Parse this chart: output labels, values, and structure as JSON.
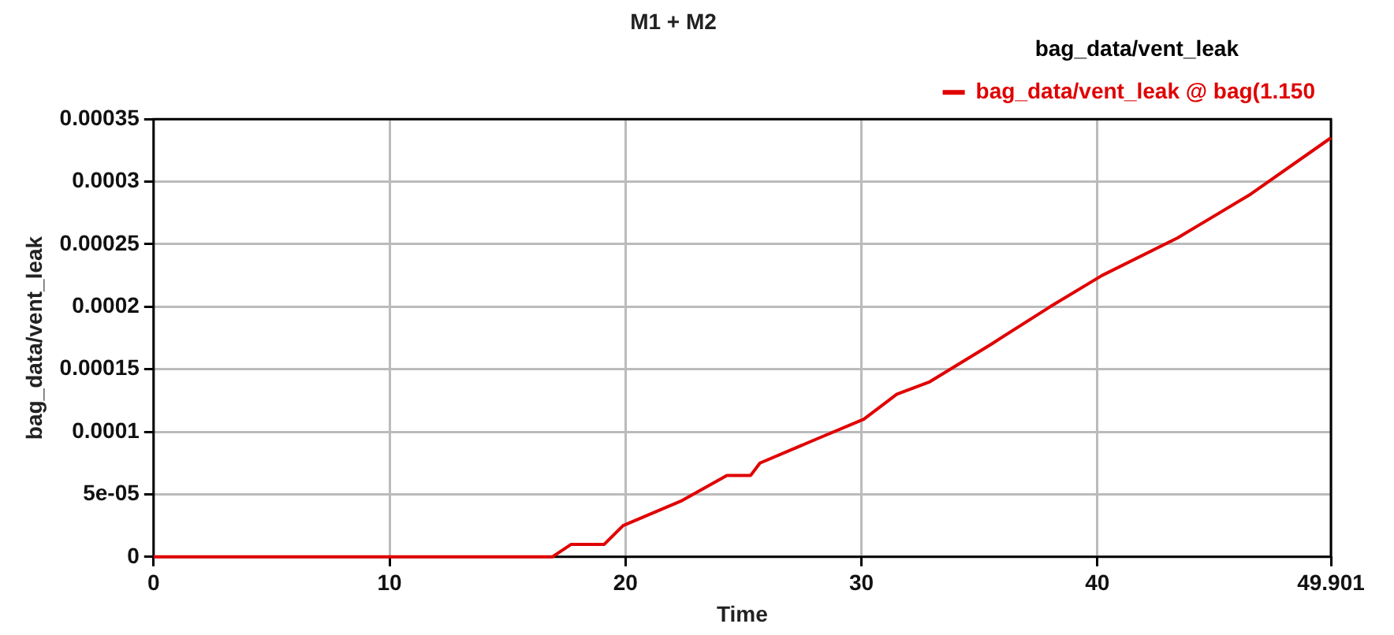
{
  "chart_data": {
    "type": "line",
    "title": "M1 + M2",
    "xlabel": "Time",
    "ylabel": "bag_data/vent_leak",
    "legend_title": "bag_data/vent_leak",
    "x": [
      0,
      16.9,
      17.7,
      19.1,
      19.9,
      22.4,
      24.3,
      25.3,
      25.7,
      28.2,
      30.1,
      31.5,
      32.9,
      35.5,
      38.0,
      40.2,
      43.4,
      46.5,
      49.9
    ],
    "series": [
      {
        "name": "bag_data/vent_leak @ bag(1.150",
        "color": "#e00000",
        "values": [
          0,
          0,
          1e-05,
          1e-05,
          2.5e-05,
          4.5e-05,
          6.5e-05,
          6.5e-05,
          7.5e-05,
          9.5e-05,
          0.00011,
          0.00013,
          0.00014,
          0.00017,
          0.0002,
          0.000225,
          0.000255,
          0.00029,
          0.000335
        ]
      }
    ],
    "xlim": [
      0,
      49.901
    ],
    "xticks": [
      0,
      10,
      20,
      30,
      40,
      49.901
    ],
    "ylim": [
      0,
      0.00035
    ],
    "yticks": [
      0,
      {
        "value": 5e-05,
        "label": "5e-05"
      },
      0.0001,
      0.00015,
      0.0002,
      0.00025,
      0.0003,
      0.00035
    ],
    "grid": true,
    "legend": "top right",
    "marker": "none",
    "line_style": "solid"
  }
}
